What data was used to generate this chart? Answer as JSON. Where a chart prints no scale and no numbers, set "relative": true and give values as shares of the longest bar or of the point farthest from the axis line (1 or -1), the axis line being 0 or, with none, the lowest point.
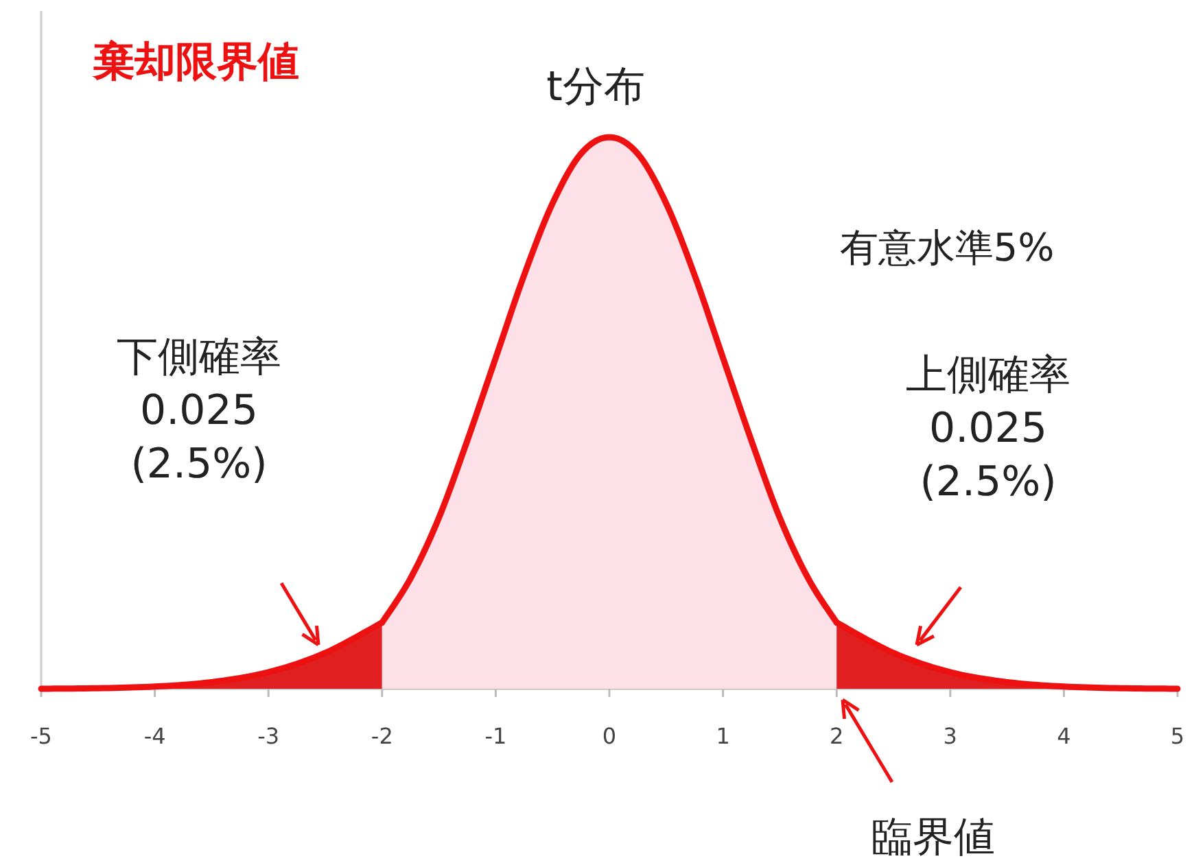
{
  "chart_data": {
    "type": "area",
    "title": "棄却限界値",
    "subtitle": "t分布",
    "relative": true,
    "series": [
      {
        "x": [
          -5,
          -4.5,
          -4,
          -3.5,
          -3,
          -2.5,
          -2
        ],
        "values": [
          0,
          0.001,
          0.004,
          0.012,
          0.03,
          0.065,
          0.12
        ],
        "color": "#e02020"
      },
      {
        "x": [
          -2,
          -1.75,
          -1.5,
          -1.25,
          -1,
          -0.75,
          -0.5,
          -0.25,
          0,
          0.25,
          0.5,
          0.75,
          1,
          1.25,
          1.5,
          1.75,
          2
        ],
        "values": [
          0.12,
          0.2,
          0.31,
          0.45,
          0.6,
          0.75,
          0.88,
          0.97,
          1,
          0.97,
          0.88,
          0.75,
          0.6,
          0.45,
          0.31,
          0.2,
          0.12
        ],
        "color": "#fde0e8"
      },
      {
        "x": [
          2,
          2.5,
          3,
          3.5,
          4,
          4.5,
          5
        ],
        "values": [
          0.12,
          0.065,
          0.03,
          0.012,
          0.004,
          0.001,
          0
        ],
        "color": "#e02020"
      }
    ],
    "xlim": [
      -5,
      5
    ],
    "xticks": [
      -5,
      -4,
      -3,
      -2,
      -1,
      0,
      1,
      2,
      3,
      4,
      5
    ],
    "annotations": [
      "有意水準5%",
      "下側確率\n0.025\n(2.5%)",
      "上側確率\n0.025\n(2.5%)",
      "臨界値"
    ],
    "grid": false,
    "marker": "none",
    "line_style": "solid"
  }
}
